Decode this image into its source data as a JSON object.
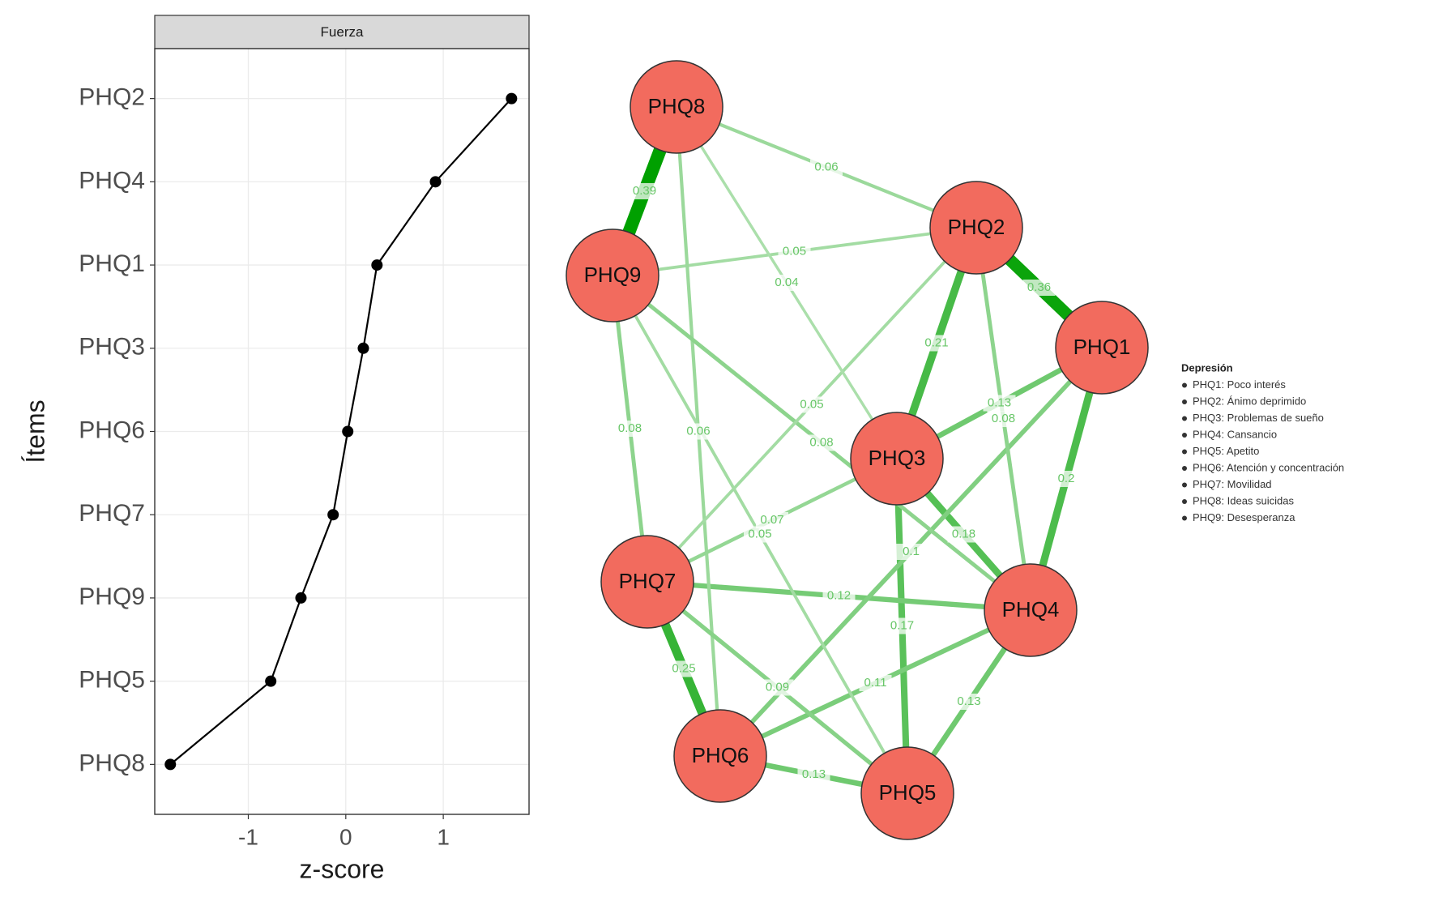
{
  "chart_data": [
    {
      "type": "line",
      "title": "Fuerza",
      "x_label": "z-score",
      "y_label": "Ítems",
      "categories": [
        "PHQ2",
        "PHQ4",
        "PHQ1",
        "PHQ3",
        "PHQ6",
        "PHQ7",
        "PHQ9",
        "PHQ5",
        "PHQ8"
      ],
      "values": [
        1.7,
        0.92,
        0.32,
        0.18,
        0.02,
        -0.13,
        -0.46,
        -0.77,
        -1.8
      ],
      "color": "#000000",
      "xlim": [
        -1.96,
        1.88
      ],
      "xticks": [
        -1,
        0,
        1
      ],
      "grid": true
    },
    {
      "type": "network",
      "node_color": "#f26b5e",
      "edge_color": "#00a000",
      "nodes": [
        "PHQ1",
        "PHQ2",
        "PHQ3",
        "PHQ4",
        "PHQ5",
        "PHQ6",
        "PHQ7",
        "PHQ8",
        "PHQ9"
      ],
      "edges": [
        {
          "source": "PHQ8",
          "target": "PHQ9",
          "weight": 0.39
        },
        {
          "source": "PHQ2",
          "target": "PHQ1",
          "weight": 0.36
        },
        {
          "source": "PHQ2",
          "target": "PHQ3",
          "weight": 0.21
        },
        {
          "source": "PHQ1",
          "target": "PHQ4",
          "weight": 0.2
        },
        {
          "source": "PHQ3",
          "target": "PHQ4",
          "weight": 0.18
        },
        {
          "source": "PHQ7",
          "target": "PHQ6",
          "weight": 0.25
        },
        {
          "source": "PHQ3",
          "target": "PHQ5",
          "weight": 0.17
        },
        {
          "source": "PHQ4",
          "target": "PHQ5",
          "weight": 0.13
        },
        {
          "source": "PHQ6",
          "target": "PHQ5",
          "weight": 0.13
        },
        {
          "source": "PHQ1",
          "target": "PHQ3",
          "weight": 0.13
        },
        {
          "source": "PHQ7",
          "target": "PHQ4",
          "weight": 0.12
        },
        {
          "source": "PHQ6",
          "target": "PHQ4",
          "weight": 0.11
        },
        {
          "source": "PHQ9",
          "target": "PHQ2",
          "weight": 0.05
        },
        {
          "source": "PHQ8",
          "target": "PHQ2",
          "weight": 0.06
        },
        {
          "source": "PHQ1",
          "target": "PHQ6",
          "weight": 0.1
        },
        {
          "source": "PHQ9",
          "target": "PHQ7",
          "weight": 0.08
        },
        {
          "source": "PHQ8",
          "target": "PHQ6",
          "weight": 0.06
        },
        {
          "source": "PHQ9",
          "target": "PHQ4",
          "weight": 0.08
        },
        {
          "source": "PHQ2",
          "target": "PHQ7",
          "weight": 0.05
        },
        {
          "source": "PHQ8",
          "target": "PHQ3",
          "weight": 0.04
        },
        {
          "source": "PHQ3",
          "target": "PHQ7",
          "weight": 0.07
        },
        {
          "source": "PHQ2",
          "target": "PHQ4",
          "weight": 0.08
        },
        {
          "source": "PHQ9",
          "target": "PHQ5",
          "weight": 0.05
        },
        {
          "source": "PHQ7",
          "target": "PHQ5",
          "weight": 0.09
        }
      ],
      "legend_title": "Depresión",
      "legend": [
        "PHQ1: Poco interés",
        "PHQ2: Ánimo deprimido",
        "PHQ3: Problemas de sueño",
        "PHQ4: Cansancio",
        "PHQ5: Apetito",
        "PHQ6: Atención y concentración",
        "PHQ7: Movilidad",
        "PHQ8: Ideas suicidas",
        "PHQ9: Desesperanza"
      ]
    }
  ]
}
